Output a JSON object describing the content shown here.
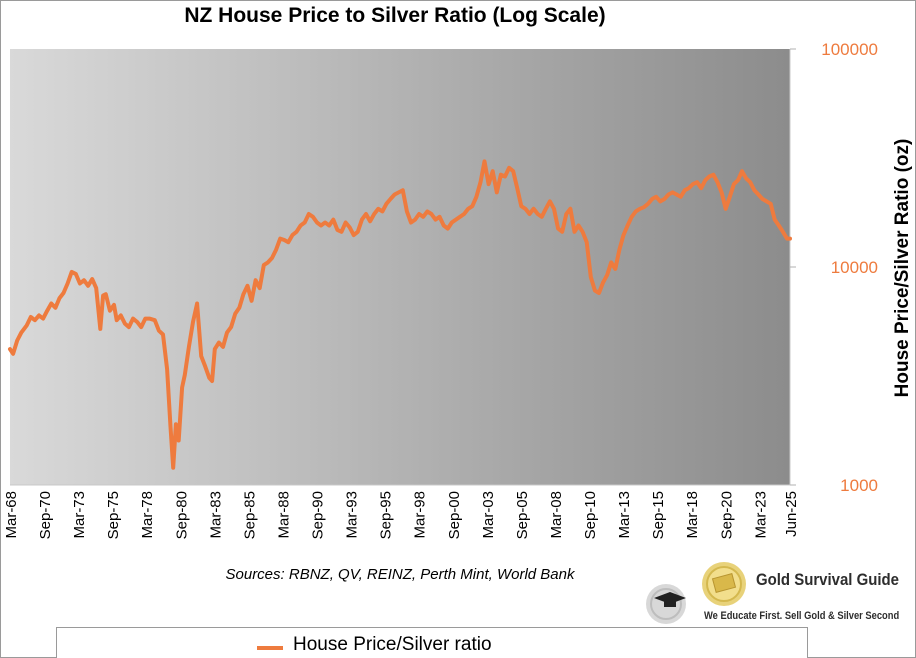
{
  "chart_data": {
    "type": "line",
    "title": "NZ House Price to Silver Ratio (Log Scale)",
    "ylabel": "House Price/Silver Ratio (oz)",
    "yscale": "log",
    "ylim": [
      1000,
      100000
    ],
    "yticks": [
      1000,
      10000,
      100000
    ],
    "ytick_labels": [
      "1000",
      "10000",
      "100000"
    ],
    "xtick_labels": [
      "Mar-68",
      "Sep-70",
      "Mar-73",
      "Sep-75",
      "Mar-78",
      "Sep-80",
      "Mar-83",
      "Sep-85",
      "Mar-88",
      "Sep-90",
      "Mar-93",
      "Sep-95",
      "Mar-98",
      "Sep-00",
      "Mar-03",
      "Sep-05",
      "Mar-08",
      "Sep-10",
      "Mar-13",
      "Sep-15",
      "Mar-18",
      "Sep-20",
      "Mar-23",
      "Jun-25"
    ],
    "xtick_dates": [
      1968.17,
      1970.67,
      1973.17,
      1975.67,
      1978.17,
      1980.67,
      1983.17,
      1985.67,
      1988.17,
      1990.67,
      1993.17,
      1995.67,
      1998.17,
      2000.67,
      2003.17,
      2005.67,
      2008.17,
      2010.67,
      2013.17,
      2015.67,
      2018.17,
      2020.67,
      2023.17,
      2025.42
    ],
    "grid": false,
    "legend_position": "bottom",
    "series": [
      {
        "name": "House Price/Silver ratio",
        "color": "#ee7b3e",
        "x": [
          1968.17,
          1968.4,
          1968.7,
          1969.0,
          1969.4,
          1969.7,
          1970.0,
          1970.3,
          1970.6,
          1970.9,
          1971.2,
          1971.5,
          1971.8,
          1972.1,
          1972.4,
          1972.7,
          1973.0,
          1973.3,
          1973.6,
          1973.9,
          1974.2,
          1974.5,
          1974.8,
          1975.0,
          1975.2,
          1975.5,
          1975.8,
          1976.0,
          1976.3,
          1976.6,
          1976.9,
          1977.2,
          1977.5,
          1977.8,
          1978.1,
          1978.4,
          1978.8,
          1979.1,
          1979.4,
          1979.7,
          1979.95,
          1980.15,
          1980.35,
          1980.55,
          1980.8,
          1981.0,
          1981.3,
          1981.6,
          1981.9,
          1982.2,
          1982.5,
          1982.8,
          1983.0,
          1983.2,
          1983.5,
          1983.8,
          1984.1,
          1984.4,
          1984.7,
          1985.0,
          1985.3,
          1985.6,
          1985.9,
          1986.2,
          1986.5,
          1986.8,
          1987.1,
          1987.4,
          1987.7,
          1988.0,
          1988.3,
          1988.6,
          1988.9,
          1989.2,
          1989.5,
          1989.8,
          1990.1,
          1990.4,
          1990.7,
          1991.0,
          1991.3,
          1991.6,
          1991.9,
          1992.2,
          1992.5,
          1992.8,
          1993.1,
          1993.4,
          1993.7,
          1994.0,
          1994.3,
          1994.6,
          1994.9,
          1995.2,
          1995.5,
          1995.8,
          1996.1,
          1996.4,
          1996.7,
          1997.0,
          1997.3,
          1997.6,
          1997.9,
          1998.2,
          1998.5,
          1998.8,
          1999.1,
          1999.4,
          1999.7,
          2000.0,
          2000.3,
          2000.6,
          2000.9,
          2001.2,
          2001.5,
          2001.8,
          2002.1,
          2002.4,
          2002.7,
          2003.0,
          2003.3,
          2003.6,
          2003.9,
          2004.2,
          2004.5,
          2004.8,
          2005.1,
          2005.4,
          2005.7,
          2006.0,
          2006.3,
          2006.6,
          2006.9,
          2007.2,
          2007.5,
          2007.8,
          2008.1,
          2008.4,
          2008.7,
          2009.0,
          2009.3,
          2009.6,
          2009.9,
          2010.2,
          2010.5,
          2010.8,
          2011.1,
          2011.4,
          2011.7,
          2012.0,
          2012.3,
          2012.6,
          2012.9,
          2013.2,
          2013.5,
          2013.8,
          2014.1,
          2014.4,
          2014.7,
          2015.0,
          2015.3,
          2015.6,
          2015.9,
          2016.2,
          2016.5,
          2016.8,
          2017.1,
          2017.4,
          2017.7,
          2018.0,
          2018.3,
          2018.6,
          2018.9,
          2019.2,
          2019.5,
          2019.8,
          2020.1,
          2020.4,
          2020.7,
          2021.0,
          2021.3,
          2021.6,
          2021.9,
          2022.2,
          2022.5,
          2022.8,
          2023.1,
          2023.4,
          2023.7,
          2024.0,
          2024.3,
          2024.6,
          2024.9,
          2025.2,
          2025.42
        ],
        "y": [
          4200,
          4000,
          4600,
          5000,
          5400,
          5900,
          5700,
          6000,
          5800,
          6300,
          6800,
          6500,
          7200,
          7600,
          8400,
          9500,
          9300,
          8400,
          8700,
          8200,
          8800,
          8000,
          5200,
          7400,
          7500,
          6300,
          6700,
          5700,
          6000,
          5500,
          5300,
          5800,
          5600,
          5300,
          5800,
          5800,
          5700,
          5100,
          4900,
          3400,
          1850,
          1200,
          1900,
          1600,
          2800,
          3200,
          4300,
          5600,
          6800,
          3900,
          3500,
          3100,
          3000,
          4200,
          4500,
          4300,
          5000,
          5300,
          6100,
          6500,
          7500,
          8200,
          7000,
          8700,
          8000,
          10200,
          10500,
          11000,
          12000,
          13500,
          13300,
          13000,
          14000,
          14500,
          15500,
          16000,
          17500,
          17000,
          16000,
          15500,
          16000,
          15500,
          16500,
          14800,
          14500,
          16000,
          15200,
          14000,
          14500,
          16500,
          17500,
          16200,
          17500,
          18500,
          18000,
          19500,
          20500,
          21500,
          22000,
          22500,
          18000,
          16000,
          16500,
          17500,
          17000,
          18000,
          17500,
          16500,
          17000,
          15500,
          15000,
          16000,
          16500,
          17000,
          17500,
          18500,
          19000,
          21000,
          24500,
          30500,
          24000,
          27500,
          22000,
          26500,
          26000,
          28500,
          27500,
          23000,
          19000,
          18500,
          17500,
          18500,
          17500,
          17000,
          18500,
          20000,
          18500,
          15000,
          14500,
          17500,
          18500,
          14500,
          15500,
          14500,
          13000,
          9000,
          7800,
          7600,
          8500,
          9200,
          10500,
          9800,
          12000,
          14000,
          15500,
          17000,
          18000,
          18500,
          18800,
          19500,
          20500,
          21000,
          20000,
          20500,
          21500,
          22000,
          21500,
          21000,
          22500,
          23000,
          24000,
          24500,
          23000,
          25000,
          26000,
          26500,
          24500,
          22000,
          18500,
          21000,
          24000,
          25000,
          27500,
          25500,
          24500,
          22500,
          21500,
          20500,
          20000,
          19500,
          16500,
          15500,
          14500,
          13500,
          13500
        ]
      }
    ]
  },
  "sources": "Sources: RBNZ, QV, REINZ, Perth Mint, World Bank",
  "logo": {
    "name": "Gold Survival Guide",
    "tagline": "We Educate First. Sell Gold & Silver Second"
  }
}
